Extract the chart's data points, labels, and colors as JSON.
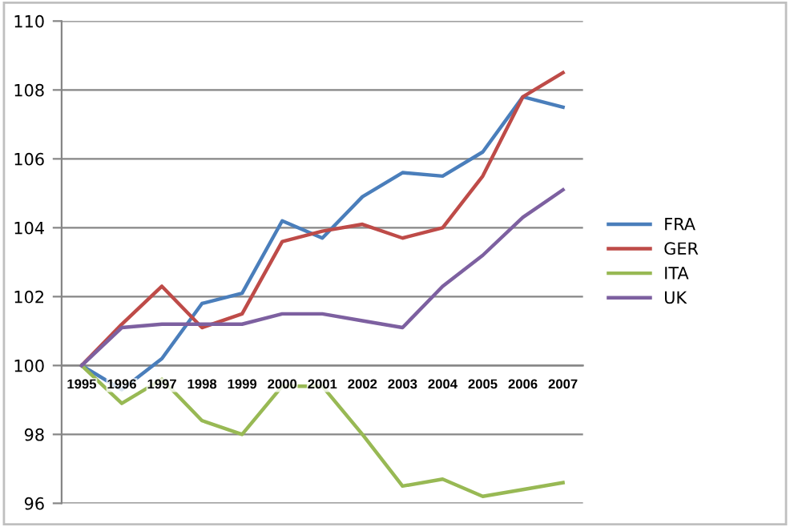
{
  "chart_data": {
    "type": "line",
    "categories": [
      "1995",
      "1996",
      "1997",
      "1998",
      "1999",
      "2000",
      "2001",
      "2002",
      "2003",
      "2004",
      "2005",
      "2006",
      "2007"
    ],
    "series": [
      {
        "name": "FRA",
        "color": "#4a7ebb",
        "values": [
          100,
          99.3,
          100.2,
          101.8,
          102.1,
          104.2,
          103.7,
          104.9,
          105.6,
          105.5,
          106.2,
          107.8,
          107.5
        ]
      },
      {
        "name": "GER",
        "color": "#be4b48",
        "values": [
          100,
          101.2,
          102.3,
          101.1,
          101.5,
          103.6,
          103.9,
          104.1,
          103.7,
          104.0,
          105.5,
          107.8,
          108.5
        ]
      },
      {
        "name": "ITA",
        "color": "#98b954",
        "values": [
          100,
          98.9,
          99.6,
          98.4,
          98.0,
          99.4,
          99.4,
          98.0,
          96.5,
          96.7,
          96.2,
          96.4,
          96.6
        ]
      },
      {
        "name": "UK",
        "color": "#7d60a0",
        "values": [
          100,
          101.1,
          101.2,
          101.2,
          101.2,
          101.5,
          101.5,
          101.3,
          101.1,
          102.3,
          103.2,
          104.3,
          105.1
        ]
      }
    ],
    "ylim": [
      96,
      110
    ],
    "yticks": [
      96,
      98,
      100,
      102,
      104,
      106,
      108,
      110
    ],
    "grid": "y",
    "legend": "right",
    "marker": "none",
    "line_style": "solid"
  }
}
